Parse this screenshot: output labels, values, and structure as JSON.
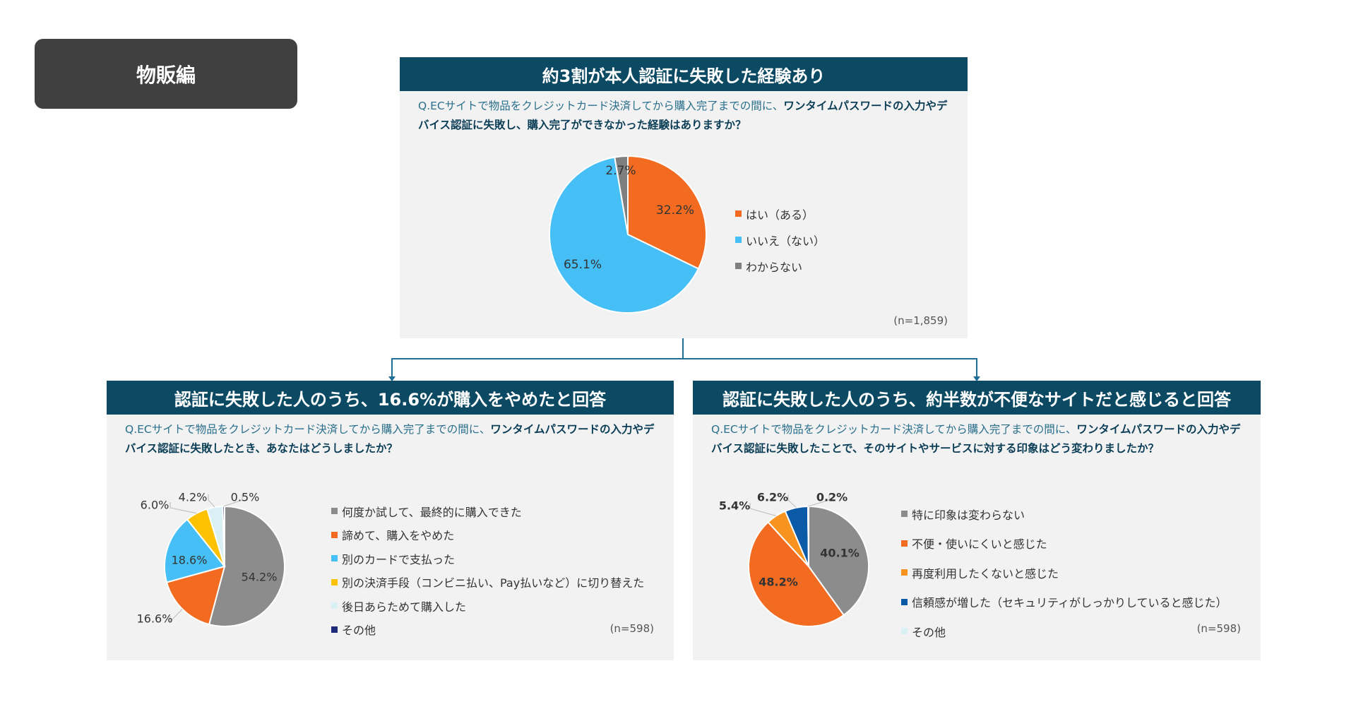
{
  "badge": "物販編",
  "sample_sizes": {
    "top": "(n=1,859)",
    "left": "(n=598)",
    "right": "(n=598)"
  },
  "panels": {
    "top": {
      "title": "約3割が本人認証に失敗した経験あり",
      "question_plain": "Q.ECサイトで物品をクレジットカード決済してから購入完了までの間に、",
      "question_bold": "ワンタイムパスワードの入力やデバイス認証に失敗し、購入完了ができなかった経験はありますか？"
    },
    "left": {
      "title": "認証に失敗した人のうち、16.6%が購入をやめたと回答",
      "question_plain": "Q.ECサイトで物品をクレジットカード決済してから購入完了までの間に、",
      "question_bold": "ワンタイムパスワードの入力やデバイス認証に失敗したとき、あなたはどうしましたか？"
    },
    "right": {
      "title": "認証に失敗した人のうち、約半数が不便なサイトだと感じると回答",
      "question_plain": "Q.ECサイトで物品をクレジットカード決済してから購入完了までの間に、",
      "question_bold": "ワンタイムパスワードの入力やデバイス認証に失敗したことで、そのサイトやサービスに対する印象はどう変わりましたか？"
    }
  },
  "chart_data": [
    {
      "type": "pie",
      "title": "約3割が本人認証に失敗した経験あり",
      "categories": [
        "はい（ある）",
        "いいえ（ない）",
        "わからない"
      ],
      "values": [
        32.2,
        65.1,
        2.7
      ],
      "labels": [
        "32.2%",
        "65.1%",
        "2.7%"
      ],
      "colors": [
        "#f26b21",
        "#45bff5",
        "#7f7f7f"
      ],
      "legend": "right"
    },
    {
      "type": "pie",
      "title": "認証に失敗した人のうち、16.6%が購入をやめたと回答",
      "categories": [
        "何度か試して、最終的に購入できた",
        "諦めて、購入をやめた",
        "別のカードで支払った",
        "別の決済手段（コンビニ払い、Pay払いなど）に切り替えた",
        "後日あらためて購入した",
        "その他"
      ],
      "values": [
        54.2,
        16.6,
        18.6,
        6.0,
        4.2,
        0.5
      ],
      "labels": [
        "54.2%",
        "16.6%",
        "18.6%",
        "6.0%",
        "4.2%",
        "0.5%"
      ],
      "colors": [
        "#8c8c8c",
        "#f26b21",
        "#45bff5",
        "#fcc100",
        "#d9f1f5",
        "#1f2a7a"
      ],
      "legend": "right"
    },
    {
      "type": "pie",
      "title": "認証に失敗した人のうち、約半数が不便なサイトだと感じると回答",
      "categories": [
        "特に印象は変わらない",
        "不便・使いにくいと感じた",
        "再度利用したくないと感じた",
        "信頼感が増した（セキュリティがしっかりしていると感じた）",
        "その他"
      ],
      "values": [
        40.1,
        48.2,
        5.4,
        6.2,
        0.2
      ],
      "labels": [
        "40.1%",
        "48.2%",
        "5.4%",
        "6.2%",
        "0.2%"
      ],
      "colors": [
        "#8c8c8c",
        "#f26b21",
        "#f7931e",
        "#0a5aa8",
        "#d9f1f5"
      ],
      "legend": "right"
    }
  ]
}
